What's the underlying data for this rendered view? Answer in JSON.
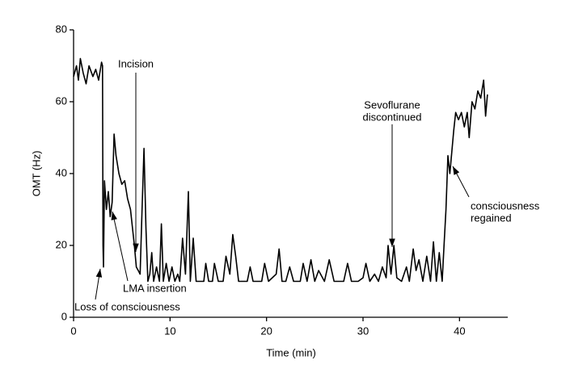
{
  "chart_data": {
    "type": "line",
    "xlabel": "Time (min)",
    "ylabel": "OMT (Hz)",
    "xlim": [
      0,
      45
    ],
    "xticks": [
      0,
      10,
      20,
      30,
      40
    ],
    "ylim": [
      0,
      80
    ],
    "yticks": [
      0,
      20,
      40,
      60,
      80
    ],
    "color": "#000000",
    "annotations": [
      {
        "text": [
          "Incision"
        ]
      },
      {
        "text": [
          "Sevoflurane",
          "discontinued"
        ]
      },
      {
        "text": [
          "consciousness",
          "regained"
        ]
      },
      {
        "text": [
          "LMA insertion"
        ]
      },
      {
        "text": [
          "Loss of consciousness"
        ]
      }
    ],
    "x": [
      0,
      0.3,
      0.5,
      0.7,
      1,
      1.3,
      1.6,
      2,
      2.3,
      2.6,
      2.9,
      3.0,
      3.05,
      3.1,
      3.2,
      3.4,
      3.6,
      3.8,
      4.0,
      4.2,
      4.4,
      4.7,
      5.0,
      5.3,
      5.6,
      5.9,
      6.1,
      6.3,
      6.5,
      6.7,
      6.9,
      7.1,
      7.3,
      7.5,
      7.7,
      7.9,
      8.1,
      8.3,
      8.6,
      8.9,
      9.1,
      9.3,
      9.6,
      9.9,
      10.2,
      10.5,
      10.8,
      11.0,
      11.3,
      11.6,
      11.9,
      12.1,
      12.4,
      12.7,
      13.5,
      13.7,
      14.0,
      14.4,
      14.6,
      15.0,
      15.5,
      15.8,
      16.2,
      16.5,
      16.8,
      17.1,
      18.0,
      18.3,
      18.6,
      19.5,
      19.8,
      20.2,
      21.0,
      21.3,
      21.6,
      22.0,
      22.4,
      22.8,
      23.5,
      23.8,
      24.2,
      24.6,
      25.0,
      25.4,
      26.0,
      26.5,
      27.0,
      28.0,
      28.4,
      28.8,
      29.5,
      30.0,
      30.3,
      30.7,
      31.2,
      31.6,
      32.0,
      32.4,
      32.6,
      32.9,
      33.2,
      33.5,
      34.0,
      34.5,
      34.8,
      35.2,
      35.5,
      35.8,
      36.2,
      36.6,
      37.0,
      37.3,
      37.6,
      37.9,
      38.2,
      38.4,
      38.6,
      38.8,
      39.0,
      39.2,
      39.4,
      39.6,
      39.9,
      40.2,
      40.5,
      40.8,
      41.0,
      41.3,
      41.6,
      41.9,
      42.2,
      42.5,
      42.7,
      42.9
    ],
    "values": [
      67,
      70,
      66,
      72,
      68,
      65,
      70,
      67,
      69,
      66,
      71,
      70,
      20,
      14,
      38,
      30,
      35,
      28,
      32,
      51,
      45,
      40,
      37,
      38,
      33,
      30,
      25,
      20,
      14,
      13,
      12,
      30,
      47,
      25,
      10,
      12,
      18,
      10,
      14,
      10,
      26,
      10,
      15,
      10,
      14,
      10,
      12,
      10,
      22,
      12,
      35,
      10,
      22,
      10,
      10,
      15,
      10,
      10,
      15,
      10,
      10,
      17,
      12,
      23,
      17,
      10,
      10,
      14,
      10,
      10,
      15,
      10,
      12,
      19,
      10,
      10,
      14,
      10,
      10,
      15,
      10,
      16,
      10,
      13,
      10,
      16,
      10,
      10,
      15,
      10,
      10,
      11,
      15,
      10,
      12,
      10,
      14,
      11,
      20,
      12,
      20,
      11,
      10,
      14,
      10,
      19,
      13,
      16,
      10,
      17,
      10,
      21,
      10,
      18,
      10,
      20,
      30,
      45,
      40,
      46,
      52,
      57,
      55,
      57,
      53,
      57,
      50,
      60,
      58,
      63,
      61,
      66,
      56,
      62
    ]
  }
}
